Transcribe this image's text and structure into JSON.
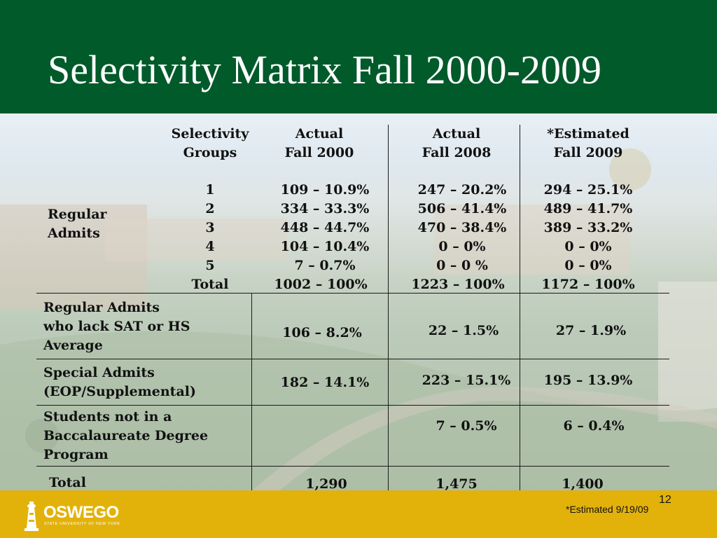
{
  "title": "Selectivity Matrix Fall 2000-2009",
  "header": {
    "groups_line1": "Selectivity",
    "groups_line2": "Groups",
    "col1_line1": "Actual",
    "col1_line2": "Fall 2000",
    "col2_line1": "Actual",
    "col2_line2": "Fall 2008",
    "col3_line1": "*Estimated",
    "col3_line2": "Fall 2009"
  },
  "regular_label_line1": "Regular",
  "regular_label_line2": "Admits",
  "groups": [
    {
      "group": "1",
      "fall2000": "109 – 10.9%",
      "fall2008": "247 – 20.2%",
      "fall2009": "294 – 25.1%"
    },
    {
      "group": "2",
      "fall2000": "334 – 33.3%",
      "fall2008": "506 – 41.4%",
      "fall2009": "489 – 41.7%"
    },
    {
      "group": "3",
      "fall2000": "448 – 44.7%",
      "fall2008": "470 – 38.4%",
      "fall2009": "389 – 33.2%"
    },
    {
      "group": "4",
      "fall2000": "104 – 10.4%",
      "fall2008": "0 – 0%",
      "fall2009": "0 – 0%"
    },
    {
      "group": "5",
      "fall2000": "7 – 0.7%",
      "fall2008": "0 – 0 %",
      "fall2009": "0 – 0%"
    }
  ],
  "group_total": {
    "label": "Total",
    "fall2000": "1002 – 100%",
    "fall2008": "1223 – 100%",
    "fall2009": "1172 – 100%"
  },
  "lack_sat": {
    "label_line1": "Regular Admits",
    "label_line2": "who lack SAT or HS",
    "label_line3": "Average",
    "fall2000": "106 – 8.2%",
    "fall2008": "22 – 1.5%",
    "fall2009": "27 – 1.9%"
  },
  "special": {
    "label_line1": "Special Admits",
    "label_line2": "(EOP/Supplemental)",
    "fall2000": "182 – 14.1%",
    "fall2008": "223 – 15.1%",
    "fall2009": "195 – 13.9%"
  },
  "not_bacc": {
    "label_line1": "Students not in a",
    "label_line2": "Baccalaureate Degree",
    "label_line3": "Program",
    "fall2008": "7 – 0.5%",
    "fall2009": "6 – 0.4%"
  },
  "grand_total": {
    "label": "Total",
    "fall2000": "1,290",
    "fall2008": "1,475",
    "fall2009": "1,400"
  },
  "footer": {
    "note": "*Estimated 9/19/09",
    "page_number": "12"
  },
  "logo": {
    "word": "OSWEGO",
    "subtitle": "STATE UNIVERSITY OF NEW YORK"
  },
  "colors": {
    "title_bar": "#005a2a",
    "bottom_bar": "#e3b20a"
  }
}
